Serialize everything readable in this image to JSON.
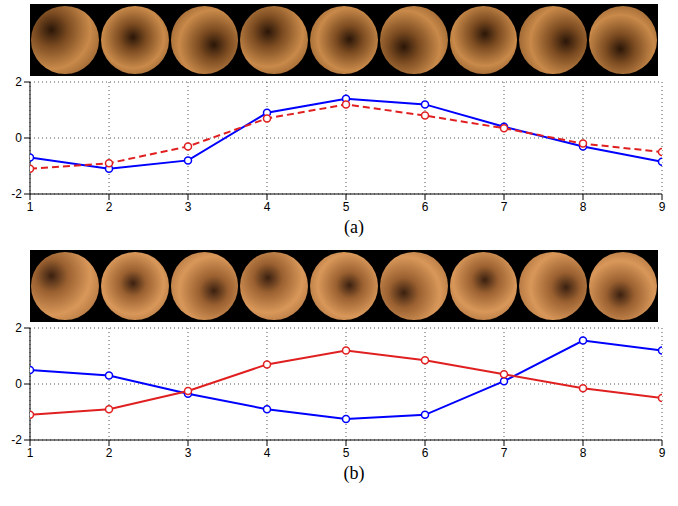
{
  "chart_data": [
    {
      "type": "line",
      "title": "(a)",
      "x": [
        1,
        2,
        3,
        4,
        5,
        6,
        7,
        8,
        9
      ],
      "xlim": [
        1,
        9
      ],
      "xticks": [
        1,
        2,
        3,
        4,
        5,
        6,
        7,
        8,
        9
      ],
      "ylim": [
        -2,
        2
      ],
      "yticks": [
        -2,
        0,
        2
      ],
      "grid": true,
      "series": [
        {
          "color": "#0000ff",
          "line_style": "solid",
          "marker": "circle",
          "values": [
            -0.7,
            -1.1,
            -0.8,
            0.9,
            1.4,
            1.2,
            0.4,
            -0.3,
            -0.85
          ]
        },
        {
          "color": "#e02020",
          "line_style": "dashed",
          "marker": "circle",
          "values": [
            -1.1,
            -0.9,
            -0.3,
            0.7,
            1.2,
            0.8,
            0.35,
            -0.2,
            -0.5
          ]
        }
      ]
    },
    {
      "type": "line",
      "title": "(b)",
      "x": [
        1,
        2,
        3,
        4,
        5,
        6,
        7,
        8,
        9
      ],
      "xlim": [
        1,
        9
      ],
      "xticks": [
        1,
        2,
        3,
        4,
        5,
        6,
        7,
        8,
        9
      ],
      "ylim": [
        -2,
        2
      ],
      "yticks": [
        -2,
        0,
        2
      ],
      "grid": true,
      "series": [
        {
          "color": "#0000ff",
          "line_style": "solid",
          "marker": "circle",
          "values": [
            0.5,
            0.3,
            -0.35,
            -0.9,
            -1.25,
            -1.1,
            0.1,
            1.55,
            1.2
          ]
        },
        {
          "color": "#e02020",
          "line_style": "solid",
          "marker": "circle",
          "values": [
            -1.1,
            -0.9,
            -0.25,
            0.7,
            1.2,
            0.85,
            0.35,
            -0.15,
            -0.5
          ]
        }
      ]
    }
  ]
}
